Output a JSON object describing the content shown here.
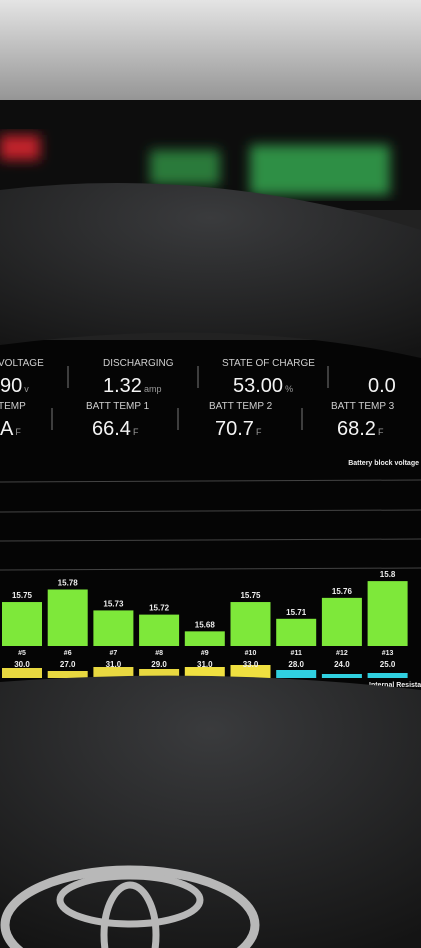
{
  "gauges": [
    {
      "label": "VOLTAGE",
      "value": "90",
      "unit": "v"
    },
    {
      "label": "DISCHARGING",
      "value": "1.32",
      "unit": "amp"
    },
    {
      "label": "STATE OF CHARGE",
      "value": "53.00",
      "unit": "%"
    },
    {
      "value": "0.0"
    },
    {
      "label": "TEMP",
      "value": "A",
      "unit": "F"
    },
    {
      "label": "BATT TEMP 1",
      "value": "66.4",
      "unit": "F"
    },
    {
      "label": "BATT TEMP 2",
      "value": "70.7",
      "unit": "F"
    },
    {
      "label": "BATT TEMP 3",
      "value": "68.2",
      "unit": "F"
    }
  ],
  "voltage_chart": {
    "title": "Battery block voltage",
    "categories": [
      "#5",
      "#6",
      "#7",
      "#8",
      "#9",
      "#10",
      "#11",
      "#12",
      "#13"
    ],
    "values": [
      15.75,
      15.78,
      15.73,
      15.72,
      15.68,
      15.75,
      15.71,
      15.76,
      15.8
    ],
    "color": "#7ee83a",
    "ylim": [
      15.645,
      16.075
    ]
  },
  "resistance_chart": {
    "title": "Internal Resistance",
    "values": [
      30,
      27,
      31,
      29,
      31,
      33,
      28,
      24,
      25
    ],
    "value_labels": [
      "30.0",
      "27.0",
      "31.0",
      "29.0",
      "31.0",
      "33.0",
      "28.0",
      "24.0",
      "25.0"
    ],
    "colors": [
      "#e8d840",
      "#e8d840",
      "#e8d840",
      "#e8d840",
      "#f0e040",
      "#f0e040",
      "#30d0e0",
      "#30d0e0",
      "#30d0e0"
    ],
    "ylim": [
      20,
      70
    ]
  }
}
